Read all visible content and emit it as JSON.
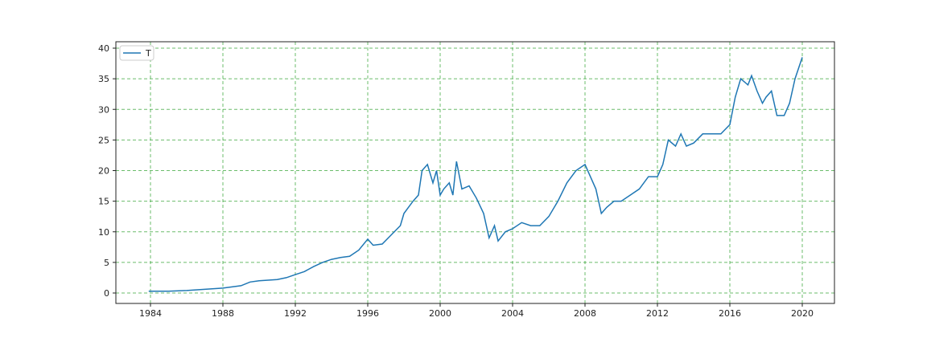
{
  "chart_data": {
    "type": "line",
    "title": "",
    "xlabel": "",
    "ylabel": "",
    "xlim": [
      1982.3,
      2021.9
    ],
    "ylim": [
      -1.7,
      41
    ],
    "grid": true,
    "grid_color": "#2ca02c",
    "line_color": "#1f77b4",
    "legend": {
      "position": "top-left",
      "entries": [
        "T"
      ]
    },
    "xticks": [
      1984,
      1988,
      1992,
      1996,
      2000,
      2004,
      2008,
      2012,
      2016,
      2020
    ],
    "xtick_labels": [
      "1984",
      "1988",
      "1992",
      "1996",
      "2000",
      "2004",
      "2008",
      "2012",
      "2016",
      "2020"
    ],
    "yticks": [
      0,
      5,
      10,
      15,
      20,
      25,
      30,
      35,
      40
    ],
    "ytick_labels": [
      "0",
      "5",
      "10",
      "15",
      "20",
      "25",
      "30",
      "35",
      "40"
    ],
    "series": [
      {
        "name": "T",
        "points": [
          [
            1983.9,
            0.3
          ],
          [
            1985,
            0.3
          ],
          [
            1986,
            0.4
          ],
          [
            1987,
            0.6
          ],
          [
            1988,
            0.8
          ],
          [
            1989,
            1.2
          ],
          [
            1989.5,
            1.8
          ],
          [
            1990,
            2.0
          ],
          [
            1991,
            2.2
          ],
          [
            1991.5,
            2.5
          ],
          [
            1992,
            3.0
          ],
          [
            1992.5,
            3.5
          ],
          [
            1993,
            4.3
          ],
          [
            1993.5,
            5.0
          ],
          [
            1994,
            5.5
          ],
          [
            1994.5,
            5.8
          ],
          [
            1995,
            6.0
          ],
          [
            1995.5,
            7.0
          ],
          [
            1996,
            8.8
          ],
          [
            1996.3,
            7.8
          ],
          [
            1996.8,
            8.0
          ],
          [
            1997.3,
            9.5
          ],
          [
            1997.8,
            11
          ],
          [
            1998,
            13
          ],
          [
            1998.5,
            15
          ],
          [
            1998.8,
            16
          ],
          [
            1999,
            20
          ],
          [
            1999.3,
            21
          ],
          [
            1999.6,
            18
          ],
          [
            1999.8,
            20
          ],
          [
            2000,
            16
          ],
          [
            2000.2,
            17
          ],
          [
            2000.5,
            18
          ],
          [
            2000.7,
            16
          ],
          [
            2000.9,
            21.5
          ],
          [
            2001.2,
            17
          ],
          [
            2001.6,
            17.5
          ],
          [
            2002,
            15.5
          ],
          [
            2002.4,
            13
          ],
          [
            2002.7,
            9
          ],
          [
            2003,
            11
          ],
          [
            2003.2,
            8.5
          ],
          [
            2003.6,
            10
          ],
          [
            2004,
            10.5
          ],
          [
            2004.5,
            11.5
          ],
          [
            2005,
            11
          ],
          [
            2005.5,
            11
          ],
          [
            2006,
            12.5
          ],
          [
            2006.5,
            15
          ],
          [
            2007,
            18
          ],
          [
            2007.5,
            20
          ],
          [
            2008,
            21
          ],
          [
            2008.3,
            19
          ],
          [
            2008.6,
            17
          ],
          [
            2008.9,
            13
          ],
          [
            2009.2,
            14
          ],
          [
            2009.6,
            15
          ],
          [
            2010,
            15
          ],
          [
            2010.5,
            16
          ],
          [
            2011,
            17
          ],
          [
            2011.5,
            19
          ],
          [
            2012,
            19
          ],
          [
            2012.3,
            21
          ],
          [
            2012.6,
            25
          ],
          [
            2013,
            24
          ],
          [
            2013.3,
            26
          ],
          [
            2013.6,
            24
          ],
          [
            2014,
            24.5
          ],
          [
            2014.5,
            26
          ],
          [
            2015,
            26
          ],
          [
            2015.5,
            26
          ],
          [
            2016,
            27.5
          ],
          [
            2016.3,
            32
          ],
          [
            2016.6,
            35
          ],
          [
            2017,
            34
          ],
          [
            2017.2,
            35.5
          ],
          [
            2017.5,
            33
          ],
          [
            2017.8,
            31
          ],
          [
            2018,
            32
          ],
          [
            2018.3,
            33
          ],
          [
            2018.6,
            29
          ],
          [
            2019,
            29
          ],
          [
            2019.3,
            31
          ],
          [
            2019.6,
            35
          ],
          [
            2020,
            38.5
          ]
        ]
      }
    ]
  }
}
